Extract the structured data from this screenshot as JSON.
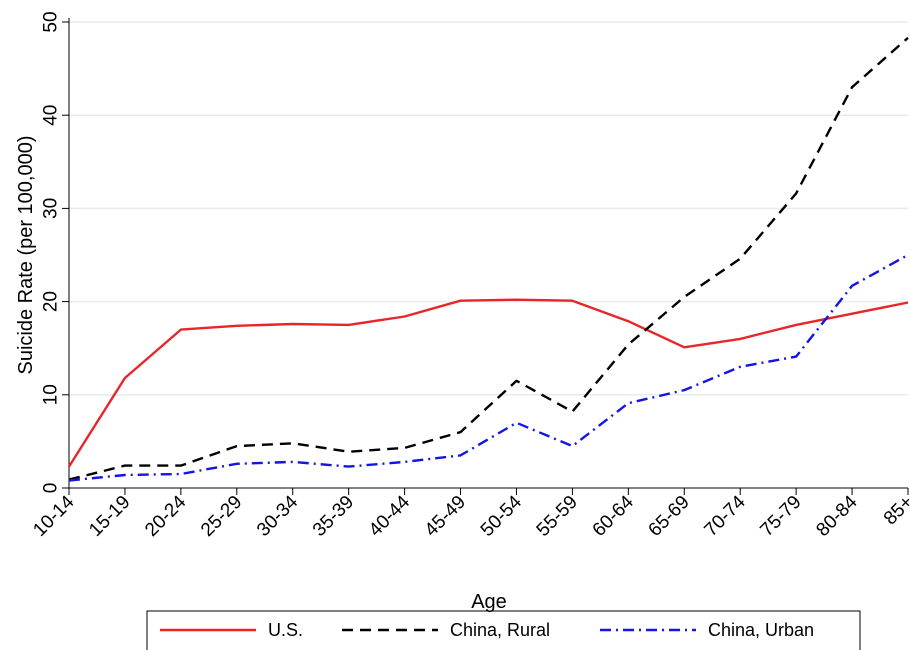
{
  "chart_data": {
    "type": "line",
    "title": "",
    "xlabel": "Age",
    "ylabel": "Suicide Rate (per 100,000)",
    "categories": [
      "10-14",
      "15-19",
      "20-24",
      "25-29",
      "30-34",
      "35-39",
      "40-44",
      "45-49",
      "50-54",
      "55-59",
      "60-64",
      "65-69",
      "70-74",
      "75-79",
      "80-84",
      "85+"
    ],
    "ylim": [
      0,
      50
    ],
    "yticks": [
      0,
      10,
      20,
      30,
      40,
      50
    ],
    "grid": true,
    "legend_position": "bottom",
    "series": [
      {
        "name": "U.S.",
        "color": "#e8262a",
        "dash": "solid",
        "values": [
          2.3,
          11.8,
          17.0,
          17.4,
          17.6,
          17.5,
          18.4,
          20.1,
          20.2,
          20.1,
          17.9,
          15.1,
          16.0,
          17.5,
          18.7,
          19.9
        ]
      },
      {
        "name": "China, Rural",
        "color": "#000000",
        "dash": "dash",
        "values": [
          0.9,
          2.4,
          2.4,
          4.5,
          4.8,
          3.9,
          4.3,
          6.0,
          11.5,
          8.2,
          15.4,
          20.5,
          24.6,
          31.6,
          43.0,
          48.3
        ]
      },
      {
        "name": "China, Urban",
        "color": "#1414e6",
        "dash": "dashdot",
        "values": [
          0.8,
          1.4,
          1.5,
          2.6,
          2.8,
          2.3,
          2.8,
          3.5,
          7.0,
          4.5,
          9.1,
          10.5,
          13.0,
          14.1,
          21.7,
          25.0
        ]
      }
    ]
  }
}
